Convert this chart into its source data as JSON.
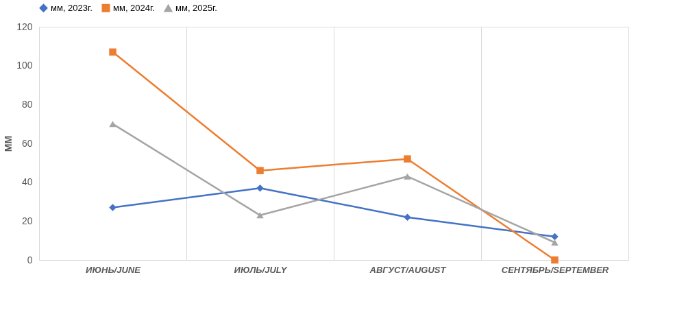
{
  "chart_data": {
    "type": "line",
    "ylabel": "ММ",
    "categories": [
      "ИЮНЬ/JUNE",
      "ИЮЛЬ/JULY",
      "АВГУСТ/AUGUST",
      "СЕНТЯБРЬ/SEPTEMBER"
    ],
    "series": [
      {
        "name": "мм, 2023г.",
        "color": "#4472c4",
        "marker": "diamond",
        "values": [
          27,
          37,
          22,
          12
        ]
      },
      {
        "name": "мм, 2024г.",
        "color": "#ed7d31",
        "marker": "square",
        "values": [
          107,
          46,
          52,
          0
        ]
      },
      {
        "name": "мм, 2025г.",
        "color": "#a5a5a5",
        "marker": "triangle",
        "values": [
          70,
          23,
          43,
          9
        ]
      }
    ],
    "ylim": [
      0,
      120
    ],
    "yticks": [
      0,
      20,
      40,
      60,
      80,
      100,
      120
    ],
    "grid": "x",
    "legend": "top",
    "line_style": "solid"
  }
}
